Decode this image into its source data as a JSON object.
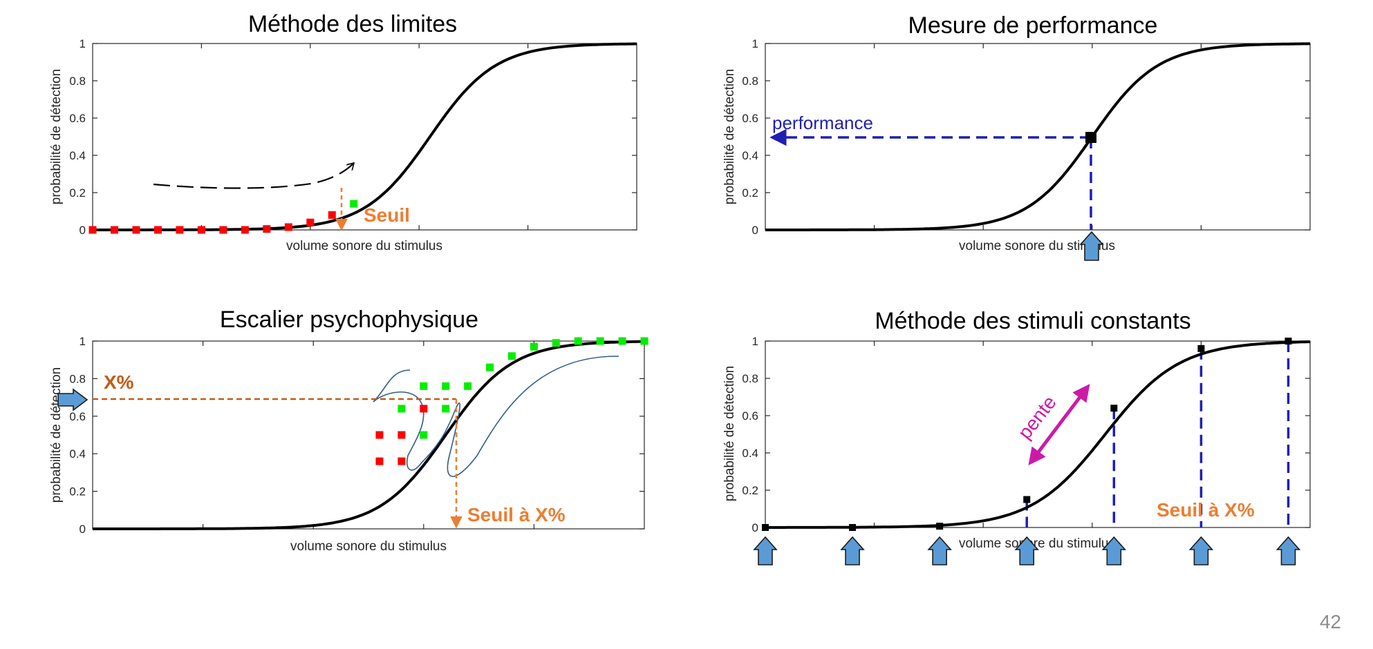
{
  "slide": {
    "page_number": "42"
  },
  "colors": {
    "curve": "#000000",
    "red_marker": "#ff0000",
    "green_marker": "#00ee00",
    "orange": "#ed7d31",
    "brown": "#c55a11",
    "dark_blue": "#1f1fb4",
    "magenta": "#cc1aa8",
    "arrow_fill": "#5b9bd5",
    "thin_blue": "#2e5c8a"
  },
  "chart_data": [
    {
      "id": "limits",
      "type": "line",
      "title": "Méthode des limites",
      "xlabel": "volume sonore du stimulus",
      "ylabel": "probabilité de détection",
      "xlim": [
        0,
        25
      ],
      "ylim": [
        0,
        1
      ],
      "yticks": [
        "0",
        "0.2",
        "0.4",
        "0.6",
        "0.8",
        "1"
      ],
      "curve": {
        "midpoint": 15.5,
        "scale": 1.5
      },
      "red_points": [
        [
          0,
          0.0
        ],
        [
          1,
          0.0
        ],
        [
          2,
          0.0
        ],
        [
          3,
          0.0
        ],
        [
          4,
          0.0
        ],
        [
          5,
          0.0
        ],
        [
          6,
          0.0
        ],
        [
          7,
          0.0
        ],
        [
          8,
          0.005
        ],
        [
          9,
          0.015
        ],
        [
          10,
          0.04
        ],
        [
          11,
          0.08
        ]
      ],
      "green_points": [
        [
          12,
          0.14
        ]
      ],
      "annotations": {
        "threshold_label": "Seuil"
      }
    },
    {
      "id": "performance",
      "type": "line",
      "title": "Mesure de performance",
      "xlabel": "volume sonore du stimulus",
      "ylabel": "probabilité de détection",
      "xlim": [
        0,
        25
      ],
      "ylim": [
        0,
        1
      ],
      "yticks": [
        "0",
        "0.2",
        "0.4",
        "0.6",
        "0.8",
        "1"
      ],
      "curve": {
        "midpoint": 15.0,
        "scale": 1.5
      },
      "marker_point": [
        15.0,
        0.5
      ],
      "annotations": {
        "performance_label": "performance"
      }
    },
    {
      "id": "staircase",
      "type": "line",
      "title": "Escalier psychophysique",
      "xlabel": "volume sonore du stimulus",
      "ylabel": "probabilité de détection",
      "xlim": [
        0,
        25
      ],
      "ylim": [
        0,
        1
      ],
      "yticks": [
        "0",
        "0.2",
        "0.4",
        "0.6",
        "0.8",
        "1"
      ],
      "curve": {
        "midpoint": 16.0,
        "scale": 1.5
      },
      "red_points": [
        [
          13,
          0.36
        ],
        [
          13,
          0.5
        ],
        [
          14,
          0.36
        ],
        [
          14,
          0.5
        ],
        [
          15,
          0.64
        ]
      ],
      "green_points": [
        [
          14,
          0.64
        ],
        [
          15,
          0.5
        ],
        [
          15,
          0.76
        ],
        [
          16,
          0.64
        ],
        [
          16,
          0.76
        ],
        [
          17,
          0.76
        ],
        [
          18,
          0.86
        ],
        [
          19,
          0.92
        ],
        [
          20,
          0.97
        ],
        [
          21,
          0.99
        ],
        [
          22,
          1.0
        ],
        [
          23,
          1.0
        ],
        [
          24,
          1.0
        ],
        [
          25,
          1.0
        ]
      ],
      "annotations": {
        "percent_label": "X%",
        "threshold_label": "Seuil à X%",
        "target_y": 0.7
      }
    },
    {
      "id": "constant",
      "type": "line",
      "title": "Méthode des stimuli constants",
      "xlabel": "volume sonore du stimulus",
      "ylabel": "probabilité de détection",
      "xlim": [
        0,
        25
      ],
      "ylim": [
        0,
        1
      ],
      "yticks": [
        "0",
        "0.2",
        "0.4",
        "0.6",
        "0.8",
        "1"
      ],
      "curve": {
        "midpoint": 15.6,
        "scale": 1.7
      },
      "points": [
        [
          0,
          0.0
        ],
        [
          4,
          0.0
        ],
        [
          8,
          0.007
        ],
        [
          12,
          0.15
        ],
        [
          16,
          0.64
        ],
        [
          20,
          0.96
        ],
        [
          24,
          1.0
        ]
      ],
      "annotations": {
        "slope_label": "pente",
        "threshold_label": "Seuil à X%"
      }
    }
  ]
}
